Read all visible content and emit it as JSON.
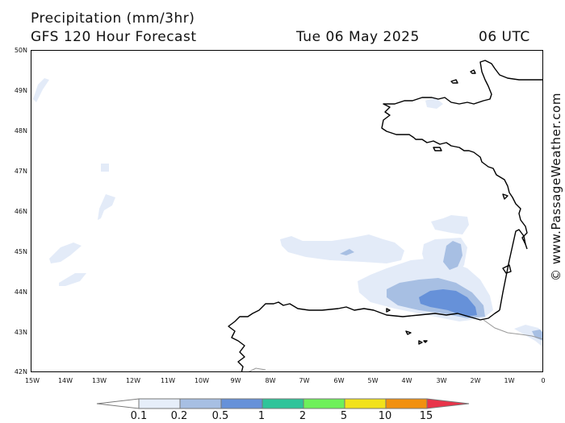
{
  "header": {
    "title": "Precipitation (mm/3hr)",
    "subtitle": "GFS 120 Hour Forecast",
    "date": "Tue 06 May 2025",
    "time": "06 UTC"
  },
  "credit": "© www.PassageWeather.com",
  "axes": {
    "lat_labels": [
      "50N",
      "49N",
      "48N",
      "47N",
      "46N",
      "45N",
      "44N",
      "43N",
      "42N"
    ],
    "lon_labels": [
      "15W",
      "14W",
      "13W",
      "12W",
      "11W",
      "10W",
      "9W",
      "8W",
      "7W",
      "6W",
      "5W",
      "4W",
      "3W",
      "2W",
      "1W",
      "0"
    ]
  },
  "legend": {
    "labels": [
      "0.1",
      "0.2",
      "0.5",
      "1",
      "2",
      "5",
      "10",
      "15"
    ],
    "colors": [
      "#ffffff",
      "#e6eef9",
      "#a7bfe3",
      "#6691d9",
      "#2fc49a",
      "#6ef05a",
      "#f2e21b",
      "#f2900f",
      "#e8344a"
    ]
  },
  "colors": {
    "very_light": "#e3ebf8",
    "light": "#a7bfe3",
    "medium": "#6691d9",
    "coast": "#000000",
    "border": "#999999"
  }
}
